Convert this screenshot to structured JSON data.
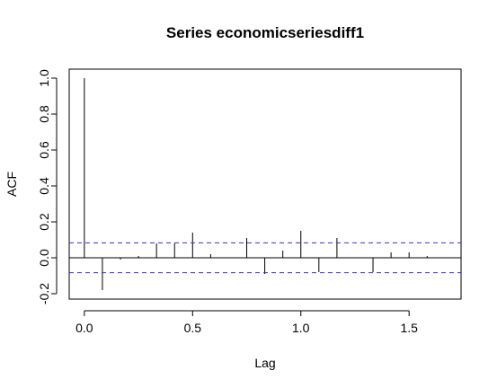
{
  "chart_data": {
    "type": "bar",
    "title": "Series  economicseriesdiff1",
    "xlabel": "Lag",
    "ylabel": "ACF",
    "xlim": [
      -0.07,
      1.74
    ],
    "ylim": [
      -0.23,
      1.05
    ],
    "x_ticks": [
      0.0,
      0.5,
      1.0,
      1.5
    ],
    "x_tick_labels": [
      "0.0",
      "0.5",
      "1.0",
      "1.5"
    ],
    "y_ticks": [
      -0.2,
      0.0,
      0.2,
      0.4,
      0.6,
      0.8,
      1.0
    ],
    "y_tick_labels": [
      "-0.2",
      "0.0",
      "0.2",
      "0.4",
      "0.6",
      "0.8",
      "1.0"
    ],
    "confidence_bound": 0.083,
    "confidence_color": "#3333cc",
    "grid": false,
    "lags": [
      0.0,
      0.0833,
      0.1667,
      0.25,
      0.3333,
      0.4167,
      0.5,
      0.5833,
      0.6667,
      0.75,
      0.8333,
      0.9167,
      1.0,
      1.0833,
      1.1667,
      1.25,
      1.3333,
      1.4167,
      1.5,
      1.5833,
      1.6667
    ],
    "values": [
      1.0,
      -0.18,
      -0.01,
      0.01,
      0.08,
      0.08,
      0.14,
      0.02,
      0.0,
      0.11,
      -0.09,
      0.04,
      0.15,
      -0.08,
      0.11,
      0.0,
      -0.08,
      0.03,
      0.03,
      0.01,
      0.0
    ]
  }
}
